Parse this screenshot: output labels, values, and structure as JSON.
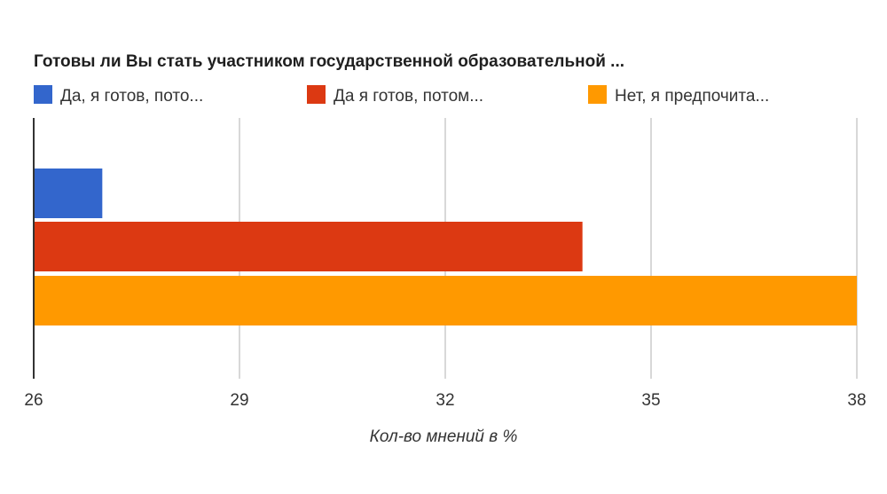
{
  "chart_data": {
    "type": "bar",
    "orientation": "horizontal",
    "title": "Готовы ли Вы стать участником государственной образовательной ...",
    "xlabel": "Кол-во мнений в %",
    "ylabel": "",
    "xlim": [
      26,
      38
    ],
    "ticks": [
      26,
      29,
      32,
      35,
      38
    ],
    "grid": true,
    "legend_position": "top",
    "series": [
      {
        "name": "Да, я готов, пото...",
        "value": 27,
        "color": "#3366cc"
      },
      {
        "name": "Да я готов, потом...",
        "value": 34,
        "color": "#dc3912"
      },
      {
        "name": "Нет, я предпочита...",
        "value": 38,
        "color": "#ff9900"
      }
    ]
  }
}
